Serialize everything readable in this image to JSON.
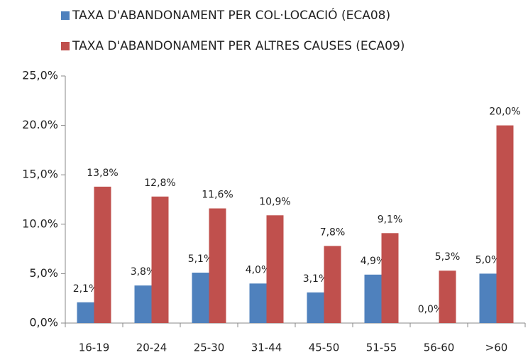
{
  "chart_data": {
    "type": "bar",
    "categories": [
      "16-19",
      "20-24",
      "25-30",
      "31-44",
      "45-50",
      "51-55",
      "56-60",
      ">60"
    ],
    "series": [
      {
        "name": "TAXA D'ABANDONAMENT PER COL·LOCACIÓ (ECA08)",
        "color": "#4f81bd",
        "values": [
          2.1,
          3.8,
          5.1,
          4.0,
          3.1,
          4.9,
          0.0,
          5.0
        ],
        "value_labels": [
          "2,1%",
          "3,8%",
          "5,1%",
          "4,0%",
          "3,1%",
          "4,9%",
          "0,0%",
          "5,0%"
        ]
      },
      {
        "name": "TAXA D'ABANDONAMENT PER ALTRES CAUSES (ECA09)",
        "color": "#c0504d",
        "values": [
          13.8,
          12.8,
          11.6,
          10.9,
          7.8,
          9.1,
          5.3,
          20.0
        ],
        "value_labels": [
          "13,8%",
          "12,8%",
          "11,6%",
          "10,9%",
          "7,8%",
          "9,1%",
          "5,3%",
          "20,0%"
        ]
      }
    ],
    "ylim": [
      0,
      25
    ],
    "yticks": [
      {
        "value": 0,
        "label": "0,0%"
      },
      {
        "value": 5,
        "label": "5,0%"
      },
      {
        "value": 10,
        "label": "10.0%"
      },
      {
        "value": 15,
        "label": "15,0%"
      },
      {
        "value": 20,
        "label": "20.0%"
      },
      {
        "value": 25,
        "label": "25,0%"
      }
    ],
    "grid": false,
    "legend": "top"
  }
}
